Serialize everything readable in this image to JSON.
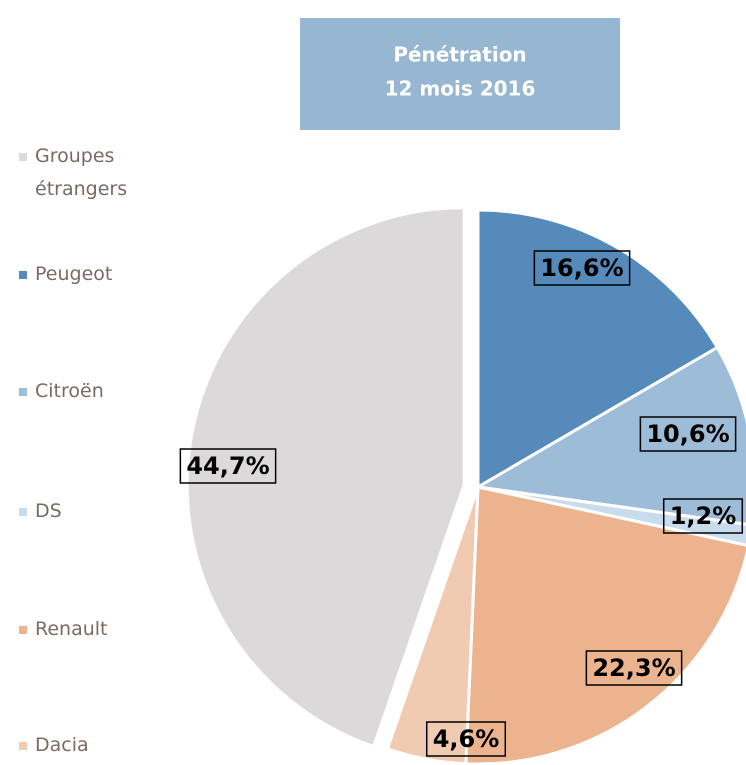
{
  "chart_data": {
    "type": "pie",
    "title": [
      "Pénétration",
      "12 mois 2016"
    ],
    "categories": [
      "Groupes étrangers",
      "Peugeot",
      "Citroën",
      "DS",
      "Renault",
      "Dacia"
    ],
    "values": [
      44.7,
      16.6,
      10.6,
      1.2,
      22.3,
      4.6
    ],
    "value_labels": [
      "44,7%",
      "16,6%",
      "10,6%",
      "1,2%",
      "22,3%",
      "4,6%"
    ],
    "colors": [
      "#dcd9da",
      "#558abb",
      "#9dbcd8",
      "#c9dcee",
      "#ecb38f",
      "#f0cbb1"
    ],
    "legend": "left"
  }
}
